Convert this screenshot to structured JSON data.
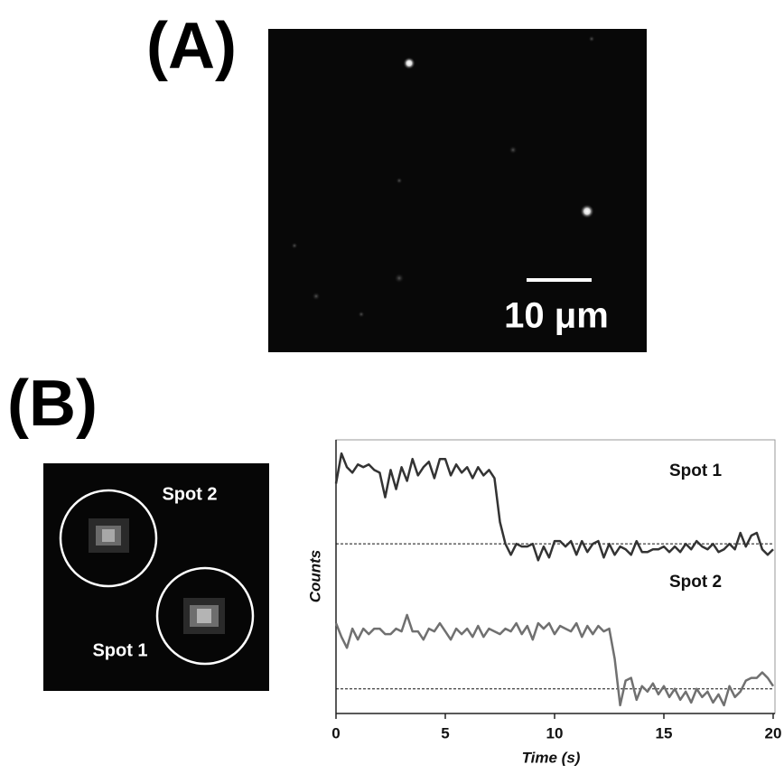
{
  "figure": {
    "panel_a": "(A)",
    "panel_b": "(B)",
    "scale_bar": "10 μm",
    "image_labels": [
      "Spot 2",
      "Spot 1"
    ]
  },
  "chart_data": {
    "type": "line",
    "xlabel": "Time (s)",
    "ylabel": "Counts",
    "xlim": [
      0,
      20
    ],
    "xticks": [
      0,
      5,
      10,
      15,
      20
    ],
    "ylim": [
      0,
      100
    ],
    "x": [
      0,
      0.25,
      0.5,
      0.75,
      1,
      1.25,
      1.5,
      1.75,
      2,
      2.25,
      2.5,
      2.75,
      3,
      3.25,
      3.5,
      3.75,
      4,
      4.25,
      4.5,
      4.75,
      5,
      5.25,
      5.5,
      5.75,
      6,
      6.25,
      6.5,
      6.75,
      7,
      7.25,
      7.5,
      7.75,
      8,
      8.25,
      8.5,
      8.75,
      9,
      9.25,
      9.5,
      9.75,
      10,
      10.25,
      10.5,
      10.75,
      11,
      11.25,
      11.5,
      11.75,
      12,
      12.25,
      12.5,
      12.75,
      13,
      13.25,
      13.5,
      13.75,
      14,
      14.25,
      14.5,
      14.75,
      15,
      15.25,
      15.5,
      15.75,
      16,
      16.25,
      16.5,
      16.75,
      17,
      17.25,
      17.5,
      17.75,
      18,
      18.25,
      18.5,
      18.75,
      19,
      19.25,
      19.5,
      19.75,
      20
    ],
    "series": [
      {
        "name": "Spot 1",
        "color": "#333333",
        "baseline": 62,
        "values": [
          84,
          95,
          90,
          88,
          91,
          90,
          91,
          89,
          88,
          79,
          89,
          82,
          90,
          85,
          93,
          87,
          90,
          92,
          86,
          93,
          93,
          87,
          91,
          88,
          90,
          86,
          90,
          87,
          89,
          86,
          70,
          62,
          58,
          62,
          61,
          61,
          62,
          56,
          61,
          57,
          63,
          63,
          61,
          63,
          58,
          63,
          59,
          62,
          63,
          57,
          62,
          58,
          61,
          60,
          58,
          63,
          59,
          59,
          60,
          60,
          61,
          59,
          61,
          59,
          62,
          60,
          63,
          61,
          60,
          62,
          59,
          60,
          62,
          60,
          66,
          61,
          65,
          66,
          60,
          58,
          60
        ]
      },
      {
        "name": "Spot 2",
        "color": "#707070",
        "baseline": 9,
        "values": [
          33,
          28,
          24,
          31,
          27,
          31,
          29,
          31,
          31,
          29,
          29,
          31,
          30,
          36,
          30,
          30,
          27,
          31,
          30,
          33,
          30,
          27,
          31,
          29,
          31,
          28,
          32,
          28,
          31,
          30,
          29,
          31,
          30,
          33,
          29,
          32,
          27,
          33,
          31,
          33,
          29,
          32,
          31,
          30,
          33,
          28,
          32,
          29,
          32,
          30,
          31,
          20,
          3,
          12,
          13,
          5,
          10,
          8,
          11,
          7,
          10,
          6,
          9,
          5,
          8,
          4,
          9,
          6,
          8,
          4,
          7,
          3,
          10,
          6,
          8,
          12,
          13,
          13,
          15,
          13,
          10
        ]
      }
    ]
  }
}
